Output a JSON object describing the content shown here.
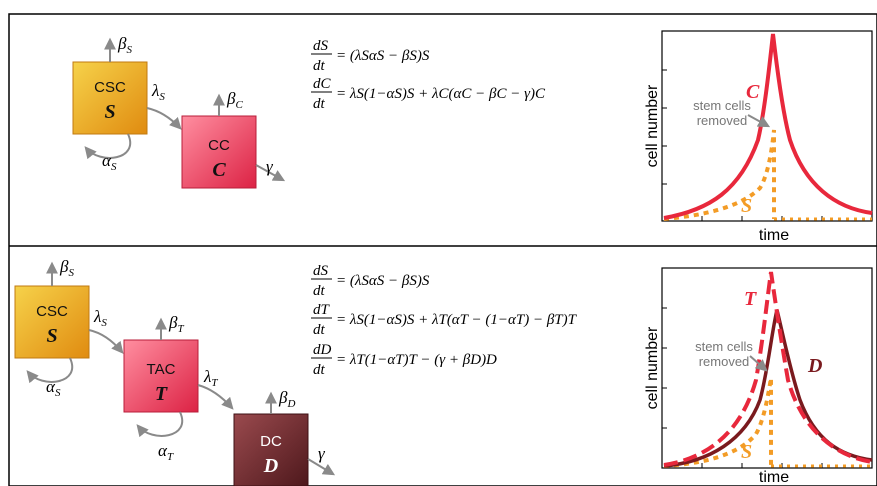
{
  "panels": [
    {
      "boxes": [
        {
          "name": "csc",
          "top": "CSC",
          "bottom": "S",
          "color_light": "#f3c232",
          "color_dark": "#e39c14"
        },
        {
          "name": "cc",
          "top": "CC",
          "bottom": "C",
          "color_light": "#ff6d86",
          "color_dark": "#e2304e"
        }
      ],
      "rates": [
        "β",
        "S",
        "λ",
        "S",
        "α",
        "S",
        "β",
        "C",
        "γ"
      ],
      "equations": [
        {
          "lhs_num": "dS",
          "lhs_den": "dt",
          "rhs": "= (λSαS − βS)S"
        },
        {
          "lhs_num": "dC",
          "lhs_den": "dt",
          "rhs": "= λS(1−αS)S + λC(αC − βC − γ)C"
        }
      ],
      "plot": {
        "ylabel": "cell number",
        "xlabel": "time",
        "annotation_lines": [
          "stem cells",
          "removed"
        ],
        "curve_labels": [
          "C",
          "S"
        ]
      }
    },
    {
      "boxes": [
        {
          "name": "csc",
          "top": "CSC",
          "bottom": "S",
          "color_light": "#f3c232",
          "color_dark": "#e39c14"
        },
        {
          "name": "tac",
          "top": "TAC",
          "bottom": "T",
          "color_light": "#ff6d86",
          "color_dark": "#e2304e"
        },
        {
          "name": "dc",
          "top": "DC",
          "bottom": "D",
          "color_light": "#8a3a3f",
          "color_dark": "#5a1e22"
        }
      ],
      "rates": [
        "β",
        "S",
        "λ",
        "S",
        "α",
        "S",
        "β",
        "T",
        "λ",
        "T",
        "α",
        "T",
        "β",
        "D",
        "γ"
      ],
      "equations": [
        {
          "lhs_num": "dS",
          "lhs_den": "dt",
          "rhs": "= (λSαS − βS)S"
        },
        {
          "lhs_num": "dT",
          "lhs_den": "dt",
          "rhs": "= λS(1−αS)S + λT(αT − (1−αT) − βT)T"
        },
        {
          "lhs_num": "dD",
          "lhs_den": "dt",
          "rhs": "= λT(1−αT)T − (γ + βD)D"
        }
      ],
      "plot": {
        "ylabel": "cell number",
        "xlabel": "time",
        "annotation_lines": [
          "stem cells",
          "removed"
        ],
        "curve_labels": [
          "T",
          "D",
          "S"
        ]
      }
    }
  ],
  "colors": {
    "red_curve": "#e8283c",
    "orange_dotted": "#f39c26",
    "darkred_curve": "#7a1a1e",
    "gray_arrow": "#8a8a8a"
  }
}
